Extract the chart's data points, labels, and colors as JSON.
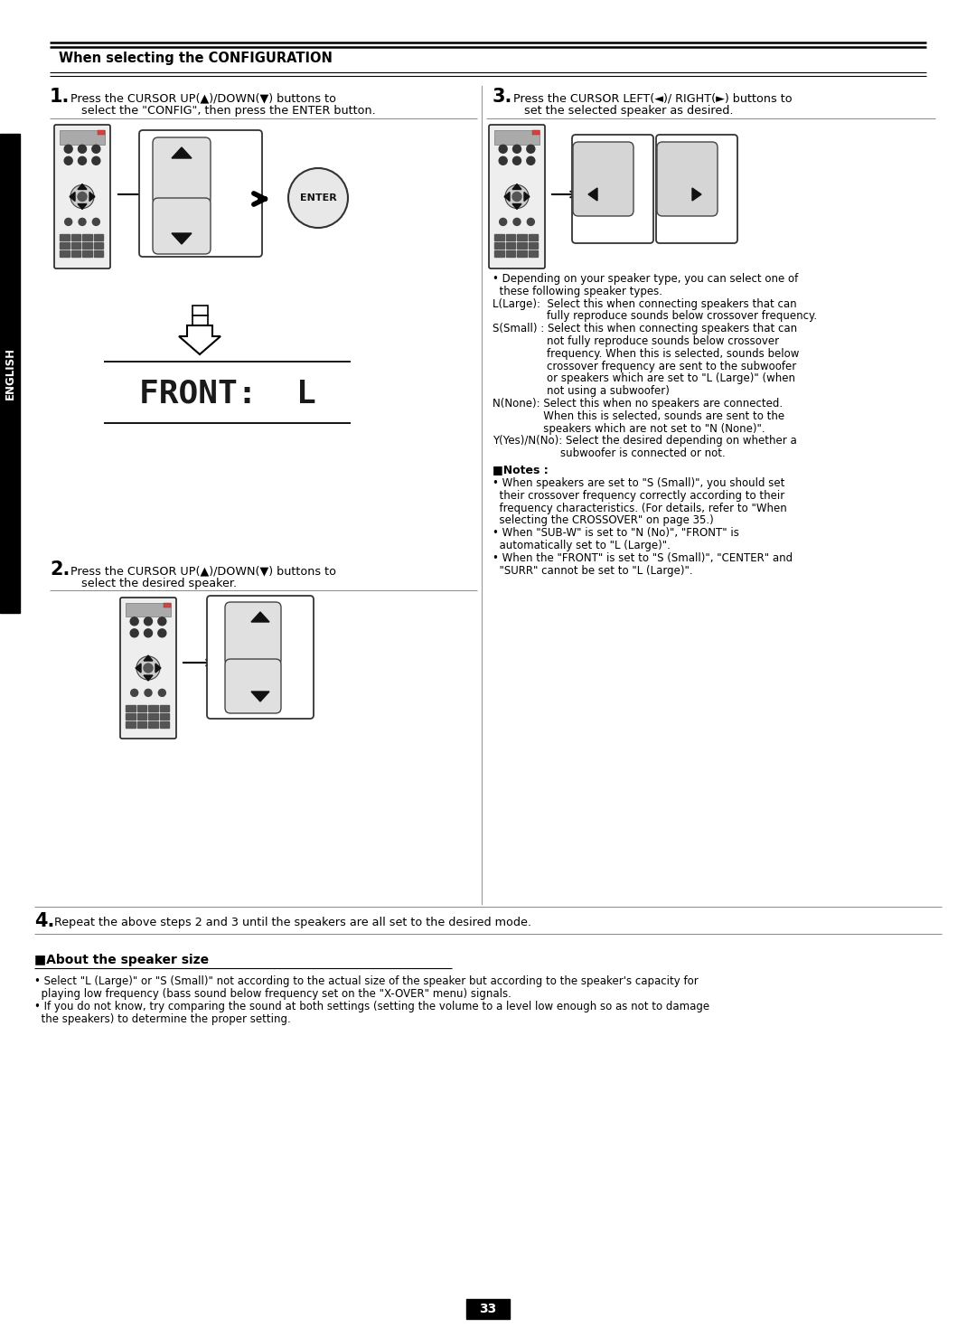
{
  "title": "When selecting the CONFIGURATION",
  "bg_color": "#ffffff",
  "page_number": "33",
  "english_sidebar": "ENGLISH",
  "step1_text_a": "Press the CURSOR UP(▲)/DOWN(▼) buttons to",
  "step1_text_b": "select the \"CONFIG\", then press the ENTER button.",
  "step2_text_a": "Press the CURSOR UP(▲)/DOWN(▼) buttons to",
  "step2_text_b": "select the desired speaker.",
  "step3_text_a": "Press the CURSOR LEFT(◄)/ RIGHT(►) buttons to",
  "step3_text_b": "set the selected speaker as desired.",
  "step4_text": "Repeat the above steps 2 and 3 until the speakers are all set to the desired mode.",
  "bullet_text_right": [
    "• Depending on your speaker type, you can select one of",
    "  these following speaker types.",
    "L(Large):  Select this when connecting speakers that can",
    "                fully reproduce sounds below crossover frequency.",
    "S(Small) : Select this when connecting speakers that can",
    "                not fully reproduce sounds below crossover",
    "                frequency. When this is selected, sounds below",
    "                crossover frequency are sent to the subwoofer",
    "                or speakers which are set to \"L (Large)\" (when",
    "                not using a subwoofer)",
    "N(None): Select this when no speakers are connected.",
    "               When this is selected, sounds are sent to the",
    "               speakers which are not set to \"N (None)\".",
    "Y(Yes)/N(No): Select the desired depending on whether a",
    "                    subwoofer is connected or not."
  ],
  "notes_title": "■Notes :",
  "notes_items": [
    "• When speakers are set to \"S (Small)\", you should set",
    "  their crossover frequency correctly according to their",
    "  frequency characteristics. (For details, refer to \"When",
    "  selecting the CROSSOVER\" on page 35.)",
    "• When \"SUB-W\" is set to \"N (No)\", \"FRONT\" is",
    "  automatically set to \"L (Large)\".",
    "• When the \"FRONT\" is set to \"S (Small)\", \"CENTER\" and",
    "  \"SURR\" cannot be set to \"L (Large)\"."
  ],
  "about_title": "■About the speaker size",
  "about_items": [
    "• Select \"L (Large)\" or \"S (Small)\" not according to the actual size of the speaker but according to the speaker's capacity for",
    "  playing low frequency (bass sound below frequency set on the \"X-OVER\" menu) signals.",
    "• If you do not know, try comparing the sound at both settings (setting the volume to a level low enough so as not to damage",
    "  the speakers) to determine the proper setting."
  ],
  "display_text": "FRONT:  L"
}
